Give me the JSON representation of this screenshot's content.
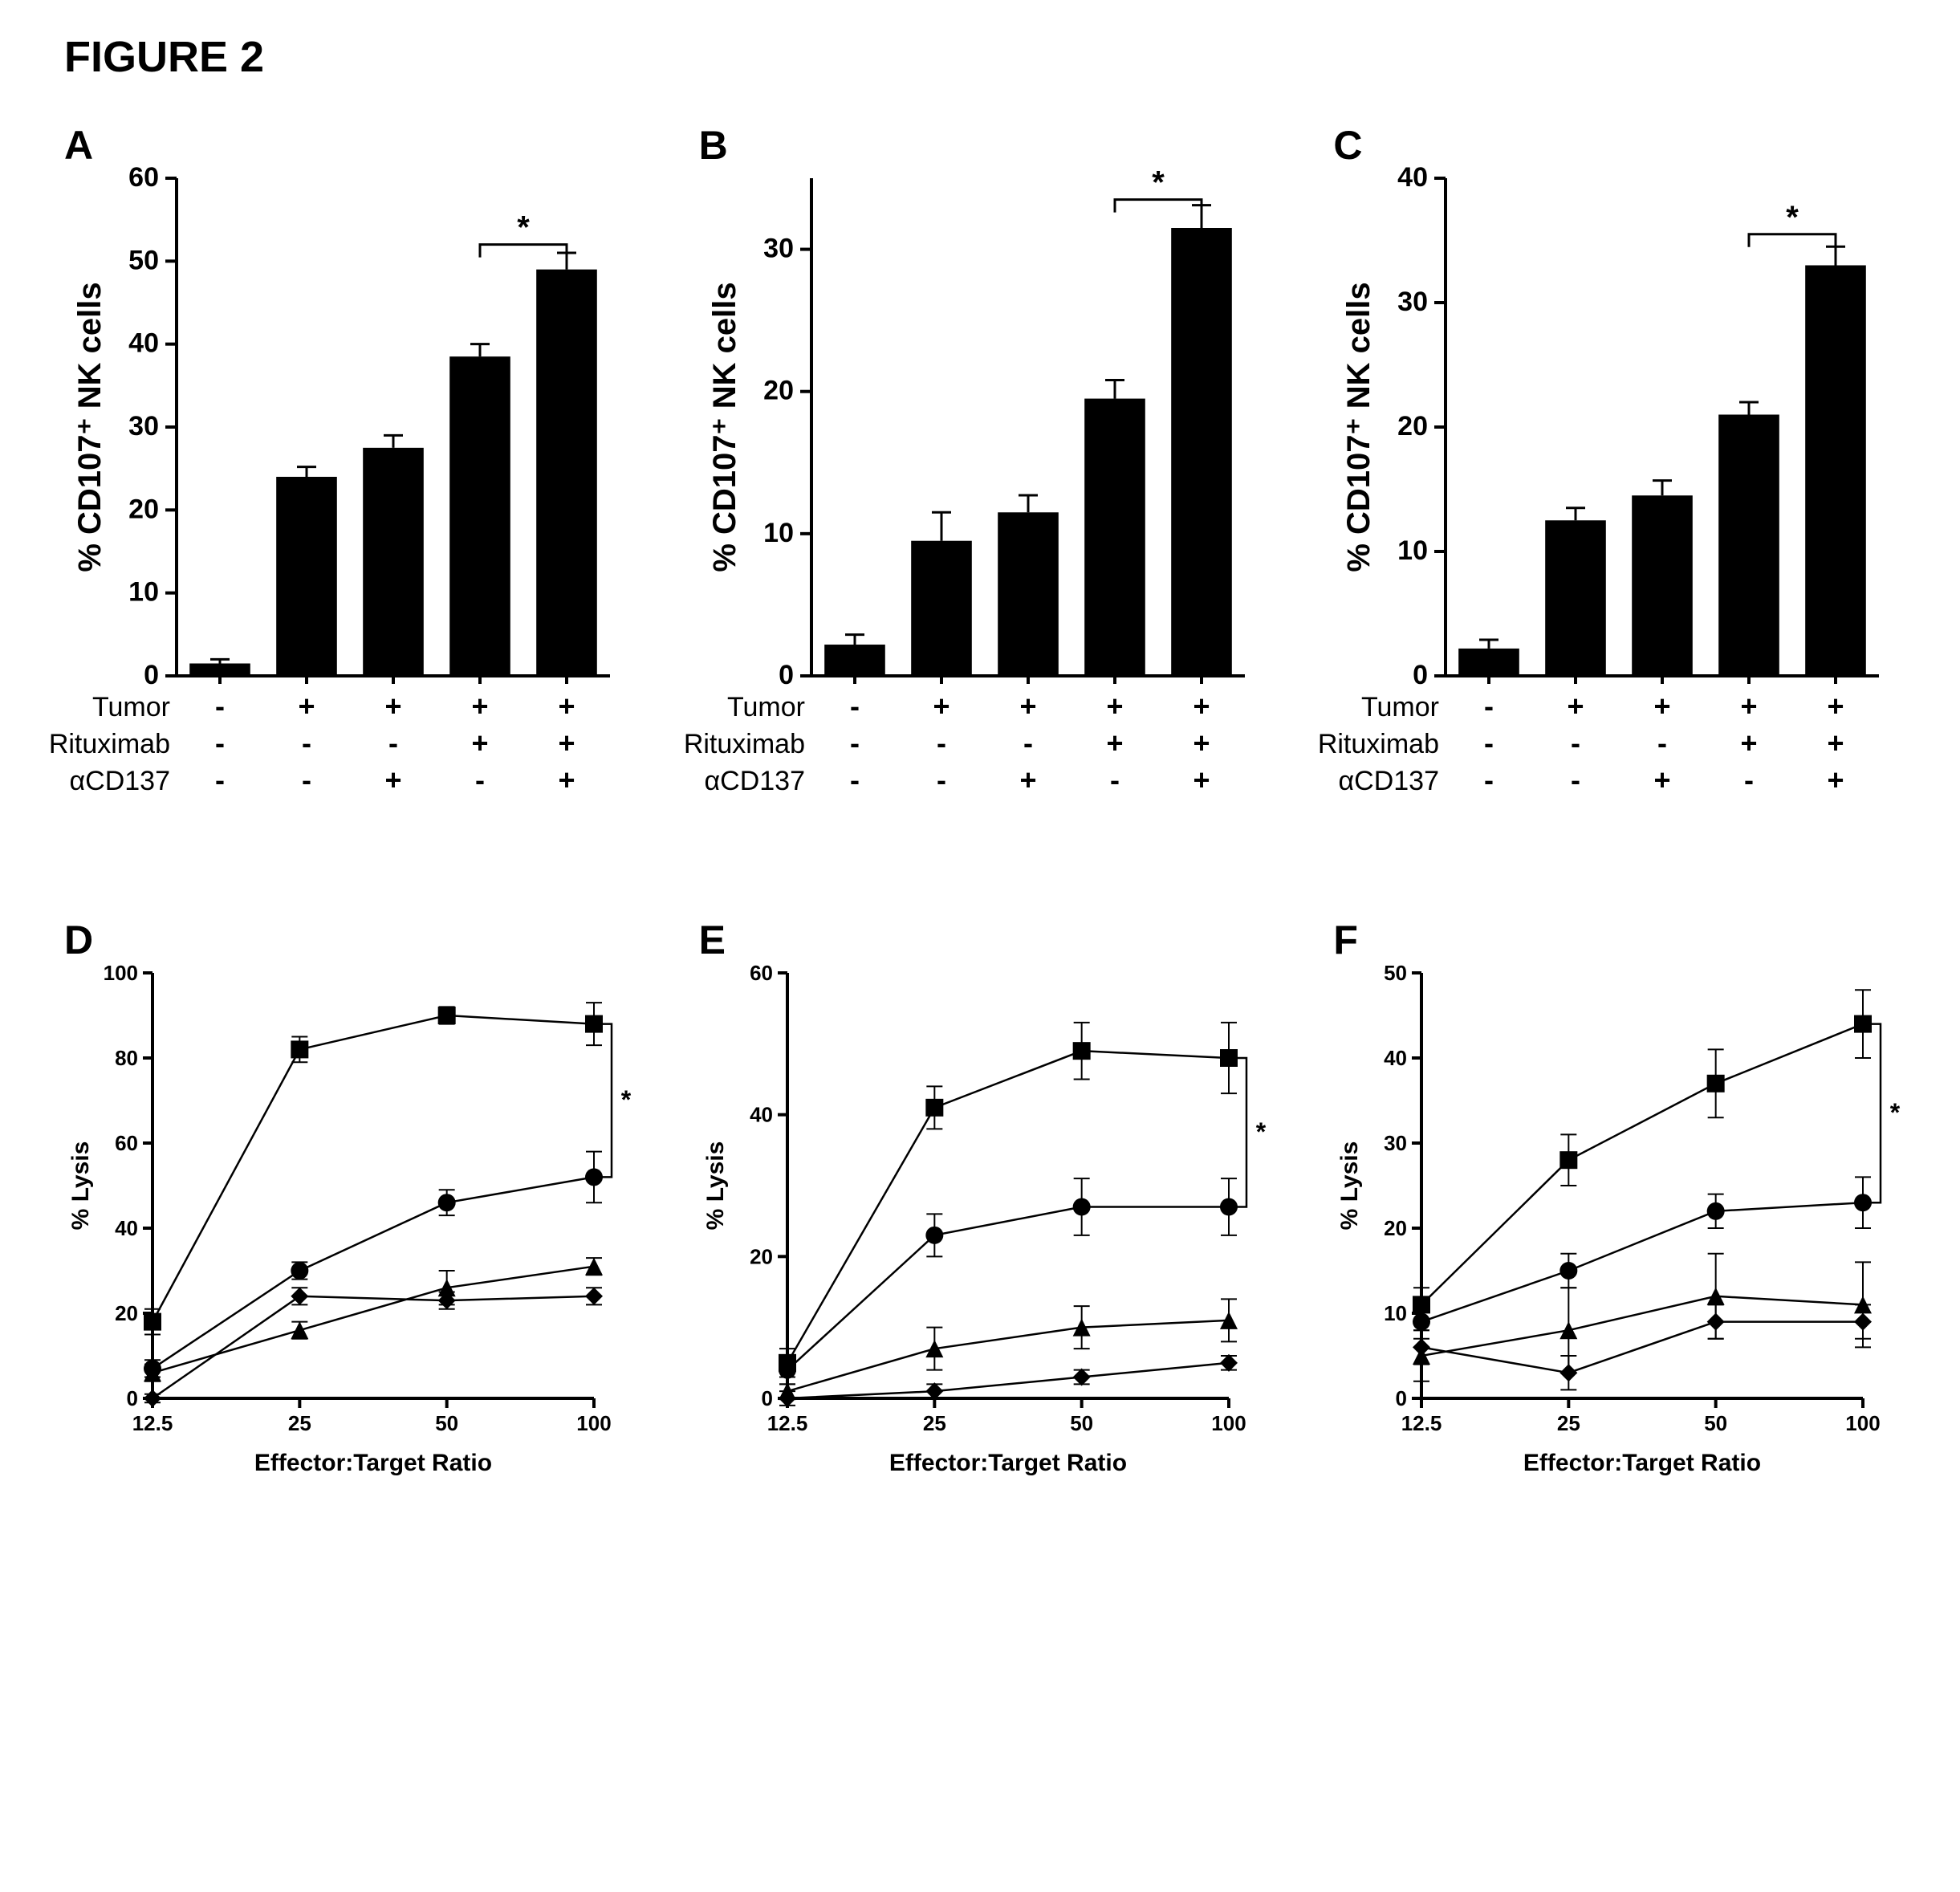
{
  "figure_title": "FIGURE 2",
  "common": {
    "background_color": "#ffffff",
    "axis_color": "#000000",
    "bar_color": "#000000",
    "error_color": "#000000",
    "tick_font_size": 26,
    "axis_title_font_size": 34,
    "panel_label_font_size": 50,
    "condition_font_size": 30,
    "marker_size": 11,
    "line_width": 2.5,
    "axis_width": 4
  },
  "bar_panels": [
    {
      "id": "A",
      "ylabel": "% CD107⁺ NK cells",
      "ylim": [
        0,
        60
      ],
      "ytick_step": 10,
      "bars": [
        {
          "value": 1.5,
          "err": 0.5
        },
        {
          "value": 24,
          "err": 1.2
        },
        {
          "value": 27.5,
          "err": 1.5
        },
        {
          "value": 38.5,
          "err": 1.5
        },
        {
          "value": 49,
          "err": 2
        }
      ],
      "sig": {
        "from": 3,
        "to": 4,
        "y": 52,
        "label": "*"
      },
      "conditions": [
        {
          "label": "Tumor",
          "values": [
            "-",
            "+",
            "+",
            "+",
            "+"
          ]
        },
        {
          "label": "Rituximab",
          "values": [
            "-",
            "-",
            "-",
            "+",
            "+"
          ]
        },
        {
          "label": "αCD137",
          "values": [
            "-",
            "-",
            "+",
            "-",
            "+"
          ]
        }
      ]
    },
    {
      "id": "B",
      "ylabel": "% CD107⁺ NK cells",
      "ylim": [
        0,
        35
      ],
      "ytick_step": 10,
      "bars": [
        {
          "value": 2.2,
          "err": 0.7
        },
        {
          "value": 9.5,
          "err": 2.0
        },
        {
          "value": 11.5,
          "err": 1.2
        },
        {
          "value": 19.5,
          "err": 1.3
        },
        {
          "value": 31.5,
          "err": 1.6
        }
      ],
      "sig": {
        "from": 3,
        "to": 4,
        "y": 33.5,
        "label": "*"
      },
      "conditions": [
        {
          "label": "Tumor",
          "values": [
            "-",
            "+",
            "+",
            "+",
            "+"
          ]
        },
        {
          "label": "Rituximab",
          "values": [
            "-",
            "-",
            "-",
            "+",
            "+"
          ]
        },
        {
          "label": "αCD137",
          "values": [
            "-",
            "-",
            "+",
            "-",
            "+"
          ]
        }
      ]
    },
    {
      "id": "C",
      "ylabel": "% CD107⁺ NK cells",
      "ylim": [
        0,
        40
      ],
      "ytick_step": 10,
      "bars": [
        {
          "value": 2.2,
          "err": 0.7
        },
        {
          "value": 12.5,
          "err": 1.0
        },
        {
          "value": 14.5,
          "err": 1.2
        },
        {
          "value": 21,
          "err": 1.0
        },
        {
          "value": 33,
          "err": 1.5
        }
      ],
      "sig": {
        "from": 3,
        "to": 4,
        "y": 35.5,
        "label": "*"
      },
      "conditions": [
        {
          "label": "Tumor",
          "values": [
            "-",
            "+",
            "+",
            "+",
            "+"
          ]
        },
        {
          "label": "Rituximab",
          "values": [
            "-",
            "-",
            "-",
            "+",
            "+"
          ]
        },
        {
          "label": "αCD137",
          "values": [
            "-",
            "-",
            "+",
            "-",
            "+"
          ]
        }
      ]
    }
  ],
  "line_panels": [
    {
      "id": "D",
      "ylabel": "% Lysis",
      "xlabel": "Effector:Target Ratio",
      "ylim": [
        0,
        100
      ],
      "ytick_step": 20,
      "xvalues": [
        12.5,
        25,
        50,
        100
      ],
      "series": [
        {
          "marker": "square",
          "y": [
            18,
            82,
            90,
            88
          ],
          "err": [
            3,
            3,
            2,
            5
          ]
        },
        {
          "marker": "circle",
          "y": [
            7,
            30,
            46,
            52
          ],
          "err": [
            2,
            2,
            3,
            6
          ]
        },
        {
          "marker": "triangle",
          "y": [
            6,
            16,
            26,
            31
          ],
          "err": [
            2,
            2,
            4,
            2
          ]
        },
        {
          "marker": "diamond",
          "y": [
            0,
            24,
            23,
            24
          ],
          "err": [
            1,
            2,
            2,
            2
          ]
        }
      ],
      "sig": {
        "x": 100,
        "y1": 88,
        "y2": 52,
        "label": "*"
      }
    },
    {
      "id": "E",
      "ylabel": "% Lysis",
      "xlabel": "Effector:Target Ratio",
      "ylim": [
        0,
        60
      ],
      "ytick_step": 20,
      "xvalues": [
        12.5,
        25,
        50,
        100
      ],
      "series": [
        {
          "marker": "square",
          "y": [
            5,
            41,
            49,
            48
          ],
          "err": [
            2,
            3,
            4,
            5
          ]
        },
        {
          "marker": "circle",
          "y": [
            4,
            23,
            27,
            27
          ],
          "err": [
            2,
            3,
            4,
            4
          ]
        },
        {
          "marker": "triangle",
          "y": [
            1,
            7,
            10,
            11
          ],
          "err": [
            1,
            3,
            3,
            3
          ]
        },
        {
          "marker": "diamond",
          "y": [
            0,
            1,
            3,
            5
          ],
          "err": [
            1,
            1,
            1,
            1
          ]
        }
      ],
      "sig": {
        "x": 100,
        "y1": 48,
        "y2": 27,
        "label": "*"
      }
    },
    {
      "id": "F",
      "ylabel": "% Lysis",
      "xlabel": "Effector:Target Ratio",
      "ylim": [
        0,
        50
      ],
      "ytick_step": 10,
      "xvalues": [
        12.5,
        25,
        50,
        100
      ],
      "series": [
        {
          "marker": "square",
          "y": [
            11,
            28,
            37,
            44
          ],
          "err": [
            2,
            3,
            4,
            4
          ]
        },
        {
          "marker": "circle",
          "y": [
            9,
            15,
            22,
            23
          ],
          "err": [
            2,
            2,
            2,
            3
          ]
        },
        {
          "marker": "triangle",
          "y": [
            5,
            8,
            12,
            11
          ],
          "err": [
            3,
            5,
            5,
            5
          ]
        },
        {
          "marker": "diamond",
          "y": [
            6,
            3,
            9,
            9
          ],
          "err": [
            2,
            2,
            2,
            2
          ]
        }
      ],
      "sig": {
        "x": 100,
        "y1": 44,
        "y2": 23,
        "label": "*"
      }
    }
  ]
}
